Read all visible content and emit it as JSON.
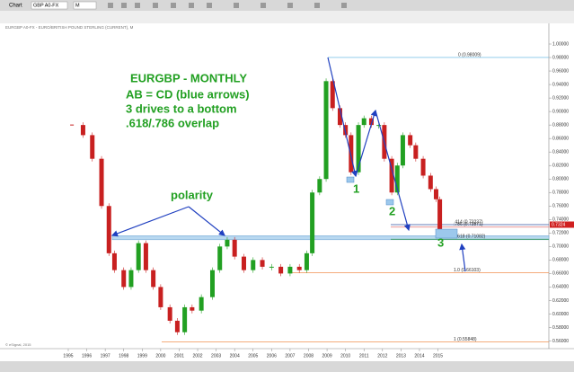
{
  "window": {
    "toolbar": [
      "Chart",
      "GBP A0-FX",
      "M"
    ],
    "caption": "EURGBP A0-FX - EURO/BRITISH POUND STERLING (CURRENT), M",
    "footer": "© eSignal, 2015"
  },
  "chart_data": {
    "type": "candlestick",
    "title": "EURGBP - MONTHLY",
    "annotations": [
      "AB = CD (blue arrows)",
      "3 drives to a bottom",
      ".618/.786 overlap"
    ],
    "labels": [
      "polarity",
      "1",
      "2",
      "3"
    ],
    "x": [
      1995.2,
      1995.8,
      1996.3,
      1996.8,
      1997.2,
      1997.5,
      1998.0,
      1998.4,
      1998.8,
      1999.2,
      1999.6,
      2000.0,
      2000.5,
      2000.9,
      2001.3,
      2001.7,
      2002.2,
      2002.8,
      2003.2,
      2003.6,
      2004.0,
      2004.5,
      2005.0,
      2005.5,
      2006.0,
      2006.5,
      2007.0,
      2007.5,
      2007.9,
      2008.2,
      2008.6,
      2008.95,
      2009.3,
      2009.7,
      2010.0,
      2010.3,
      2010.7,
      2011.0,
      2011.4,
      2011.8,
      2012.1,
      2012.5,
      2012.8,
      2013.1,
      2013.5,
      2013.8,
      2014.2,
      2014.6,
      2014.9,
      2015.1
    ],
    "values": [
      0.88,
      0.865,
      0.83,
      0.76,
      0.69,
      0.665,
      0.64,
      0.665,
      0.705,
      0.665,
      0.64,
      0.61,
      0.59,
      0.573,
      0.61,
      0.605,
      0.625,
      0.665,
      0.7,
      0.71,
      0.685,
      0.665,
      0.68,
      0.67,
      0.67,
      0.66,
      0.67,
      0.665,
      0.69,
      0.78,
      0.8,
      0.945,
      0.905,
      0.88,
      0.865,
      0.81,
      0.88,
      0.89,
      0.88,
      0.88,
      0.83,
      0.78,
      0.82,
      0.865,
      0.85,
      0.83,
      0.805,
      0.785,
      0.77,
      0.725
    ],
    "color_up": "#22a022",
    "color_down": "#c82020",
    "xlim": [
      1991.55,
      2021.0
    ],
    "xticks": [
      1995,
      1996,
      1997,
      1998,
      1999,
      2000,
      2001,
      2002,
      2003,
      2004,
      2005,
      2006,
      2007,
      2008,
      2009,
      2010,
      2011,
      2012,
      2013,
      2014,
      2015
    ],
    "ylim": [
      0.55,
      1.0
    ],
    "yticks": [
      {
        "value": 0.56,
        "label": "0.56000"
      },
      {
        "value": 0.58,
        "label": "0.58000"
      },
      {
        "value": 0.6,
        "label": "0.60000"
      },
      {
        "value": 0.62,
        "label": "0.62000"
      },
      {
        "value": 0.64,
        "label": "0.64000"
      },
      {
        "value": 0.66,
        "label": "0.66000"
      },
      {
        "value": 0.68,
        "label": "0.68000"
      },
      {
        "value": 0.7,
        "label": "0.70000"
      },
      {
        "value": 0.72,
        "label": "0.72000"
      },
      {
        "value": 0.74,
        "label": "0.74000"
      },
      {
        "value": 0.76,
        "label": "0.76000"
      },
      {
        "value": 0.78,
        "label": "0.78000"
      },
      {
        "value": 0.8,
        "label": "0.80000"
      },
      {
        "value": 0.82,
        "label": "0.82000"
      },
      {
        "value": 0.84,
        "label": "0.84000"
      },
      {
        "value": 0.86,
        "label": "0.86000"
      },
      {
        "value": 0.88,
        "label": "0.88000"
      },
      {
        "value": 0.9,
        "label": "0.90000"
      },
      {
        "value": 0.92,
        "label": "0.92000"
      },
      {
        "value": 0.94,
        "label": "0.94000"
      },
      {
        "value": 0.96,
        "label": "0.96000"
      },
      {
        "value": 0.98,
        "label": "0.98000"
      },
      {
        "value": 1.0,
        "label": "1.00000"
      }
    ],
    "levels": [
      {
        "value": 0.98009,
        "label": "0 (0.98009)",
        "color": "#55b0e0"
      },
      {
        "value": 0.73237,
        "label": ".414 (0.73237)",
        "color": "#3050a0"
      },
      {
        "value": 0.72871,
        "label": ".786 (0.72871)",
        "color": "#e07070"
      },
      {
        "value": 0.71082,
        "label": "1.618 (0.71082)",
        "color": "#30a030"
      },
      {
        "value": 0.66103,
        "label": "1.0 (0.66103)",
        "color": "#f09050"
      },
      {
        "value": 0.55848,
        "label": "1 (0.55848)",
        "color": "#f09050"
      }
    ],
    "last": {
      "value": 0.7324,
      "label": "0.7324"
    }
  }
}
